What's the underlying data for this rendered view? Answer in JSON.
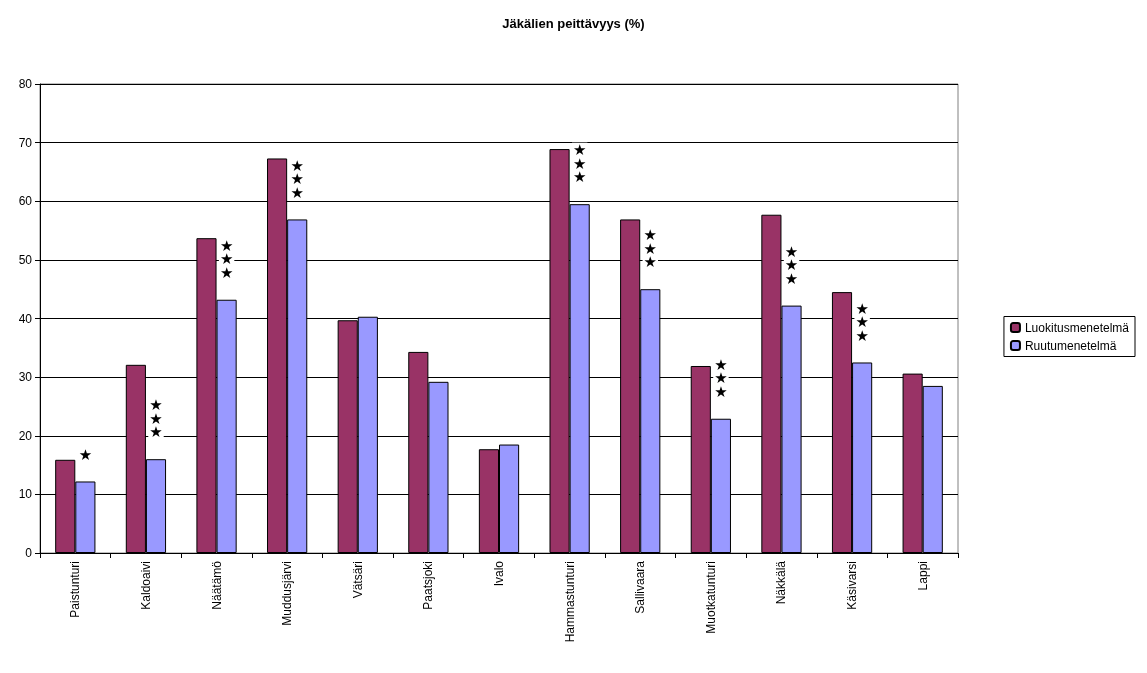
{
  "chart_data": {
    "type": "bar",
    "title": "Jäkälien peittävyys (%)",
    "categories": [
      "Paistunturi",
      "Kaldoaivi",
      "Näätämö",
      "Muddusjärvi",
      "Vätsäri",
      "Paatsjoki",
      "Ivalo",
      "Hammastunturi",
      "Sallivaara",
      "Muotkatunturi",
      "Näkkälä",
      "Käsivarsi",
      "Lappi"
    ],
    "series": [
      {
        "name": "Luokitusmenetelmä",
        "color": "#993366",
        "values": [
          15.9,
          32.1,
          53.7,
          67.3,
          39.7,
          34.3,
          17.7,
          68.9,
          56.9,
          31.9,
          57.7,
          44.5,
          30.6
        ]
      },
      {
        "name": "Ruutumenetelmä",
        "color": "#9999ff",
        "values": [
          12.2,
          16.0,
          43.2,
          56.9,
          40.3,
          29.2,
          18.5,
          59.5,
          45.0,
          22.9,
          42.2,
          32.5,
          28.5
        ]
      }
    ],
    "ylim": [
      0,
      80
    ],
    "yticks": [
      0,
      10,
      20,
      30,
      40,
      50,
      60,
      70,
      80
    ],
    "grid": "y",
    "legend": "right",
    "annotations": [
      {
        "text": "★",
        "x": "Paistunturi",
        "y": 12.2
      },
      {
        "text": "★★★",
        "x": "Kaldoaivi",
        "y": 16.0
      },
      {
        "text": "★★★",
        "x": "Näätämö",
        "y": 43.2
      },
      {
        "text": "★★★",
        "x": "Muddusjärvi",
        "y": 56.9
      },
      {
        "text": "★★★",
        "x": "Hammastunturi",
        "y": 59.5
      },
      {
        "text": "★★★",
        "x": "Sallivaara",
        "y": 45.0
      },
      {
        "text": "★★★",
        "x": "Muotkatunturi",
        "y": 22.9
      },
      {
        "text": "★★★",
        "x": "Näkkälä",
        "y": 42.2
      },
      {
        "text": "★★★",
        "x": "Käsivarsi",
        "y": 32.5
      }
    ]
  }
}
